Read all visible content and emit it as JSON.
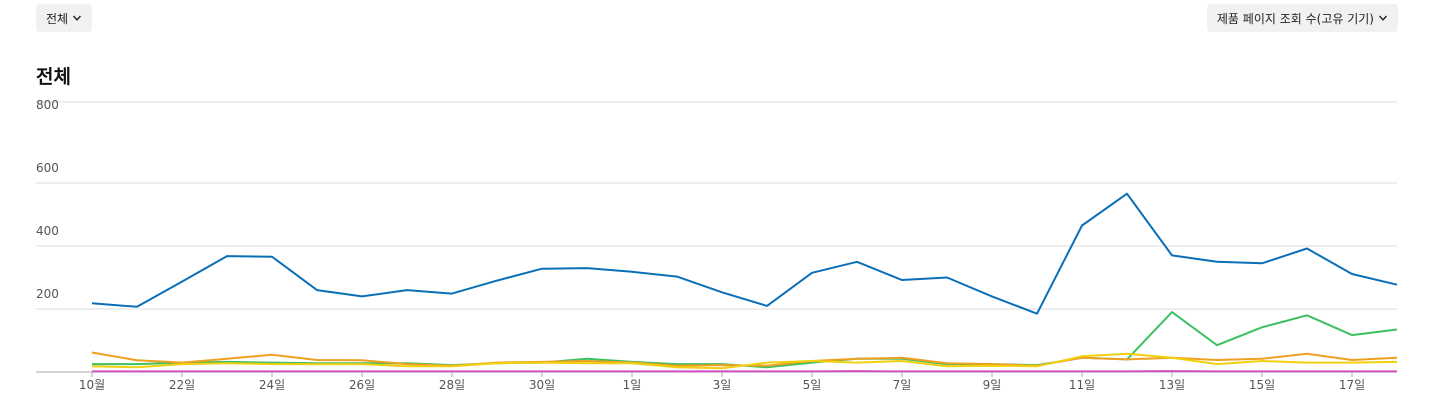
{
  "filters": {
    "left_label": "전체",
    "right_label": "제품 페이지 조회 수(고유 기기)"
  },
  "colors": {
    "gridline": "#dddddd",
    "baseline": "#aaaaaa"
  },
  "chart_data": {
    "type": "line",
    "title": "전체",
    "ylim": [
      0,
      800
    ],
    "yticks": [
      200,
      400,
      600,
      800
    ],
    "grid": true,
    "x": [
      "10월 20일",
      "10월 21일",
      "10월 22일",
      "10월 23일",
      "10월 24일",
      "10월 25일",
      "10월 26일",
      "10월 27일",
      "10월 28일",
      "10월 29일",
      "10월 30일",
      "10월 31일",
      "11월 1일",
      "11월 2일",
      "11월 3일",
      "11월 4일",
      "11월 5일",
      "11월 6일",
      "11월 7일",
      "11월 8일",
      "11월 9일",
      "11월 10일",
      "11월 11일",
      "11월 12일",
      "11월 13일",
      "11월 14일",
      "11월 15일",
      "11월 16일",
      "11월 17일",
      "11월 18일"
    ],
    "xtick_labels": [
      "10월",
      "22일",
      "24일",
      "26일",
      "28일",
      "30일",
      "1일",
      "3일",
      "5일",
      "7일",
      "9일",
      "11일",
      "13일",
      "15일",
      "17일"
    ],
    "xtick_index": [
      0,
      2,
      4,
      6,
      8,
      10,
      12,
      14,
      16,
      18,
      20,
      22,
      24,
      26,
      28
    ],
    "series": [
      {
        "color": "#0b6fb8",
        "values": [
          218,
          207,
          287,
          368,
          366,
          260,
          240,
          260,
          249,
          290,
          328,
          330,
          318,
          303,
          253,
          210,
          315,
          350,
          292,
          300,
          240,
          185,
          465,
          566,
          370,
          350,
          345,
          392,
          311,
          277
        ]
      },
      {
        "color": "#3cc060",
        "values": [
          25,
          25,
          30,
          32,
          30,
          28,
          28,
          28,
          22,
          28,
          30,
          42,
          32,
          25,
          25,
          15,
          30,
          42,
          42,
          25,
          25,
          22,
          45,
          40,
          190,
          85,
          142,
          180,
          117,
          135
        ]
      },
      {
        "color": "#f0a020",
        "values": [
          62,
          37,
          30,
          42,
          55,
          38,
          37,
          25,
          20,
          30,
          32,
          35,
          30,
          20,
          22,
          20,
          35,
          42,
          45,
          28,
          25,
          20,
          45,
          40,
          45,
          38,
          42,
          58,
          38,
          45
        ]
      },
      {
        "color": "#f0d010",
        "values": [
          18,
          15,
          25,
          28,
          25,
          25,
          25,
          18,
          18,
          28,
          30,
          28,
          28,
          15,
          12,
          30,
          35,
          30,
          35,
          18,
          20,
          18,
          50,
          58,
          45,
          25,
          35,
          30,
          30,
          32
        ]
      },
      {
        "color": "#d050c0",
        "values": [
          2,
          2,
          2,
          2,
          2,
          2,
          2,
          2,
          2,
          2,
          2,
          2,
          2,
          2,
          2,
          2,
          2,
          3,
          2,
          2,
          2,
          2,
          2,
          2,
          3,
          2,
          2,
          2,
          2,
          2
        ]
      }
    ]
  }
}
